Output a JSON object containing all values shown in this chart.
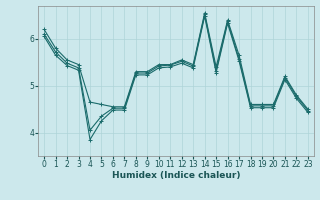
{
  "xlabel": "Humidex (Indice chaleur)",
  "xlim": [
    -0.5,
    23.5
  ],
  "ylim": [
    3.5,
    6.7
  ],
  "yticks": [
    4,
    5,
    6
  ],
  "xticks": [
    0,
    1,
    2,
    3,
    4,
    5,
    6,
    7,
    8,
    9,
    10,
    11,
    12,
    13,
    14,
    15,
    16,
    17,
    18,
    19,
    20,
    21,
    22,
    23
  ],
  "bg_color": "#cce8ec",
  "line_color": "#1a6b6b",
  "grid_color": "#afd4d8",
  "line1_y": [
    6.2,
    5.8,
    5.55,
    5.45,
    4.65,
    4.6,
    4.55,
    4.55,
    5.3,
    5.3,
    5.45,
    5.45,
    5.55,
    5.45,
    6.55,
    5.4,
    6.4,
    5.65,
    4.6,
    4.6,
    4.6,
    5.2,
    4.8,
    4.5
  ],
  "line2_y": [
    6.1,
    5.72,
    5.48,
    5.38,
    4.05,
    4.35,
    4.52,
    4.52,
    5.27,
    5.27,
    5.42,
    5.44,
    5.52,
    5.42,
    6.52,
    5.32,
    6.37,
    5.57,
    4.57,
    4.57,
    4.57,
    5.17,
    4.77,
    4.47
  ],
  "line3_y": [
    6.05,
    5.65,
    5.43,
    5.33,
    3.85,
    4.25,
    4.48,
    4.48,
    5.23,
    5.23,
    5.38,
    5.4,
    5.48,
    5.38,
    6.48,
    5.28,
    6.33,
    5.53,
    4.53,
    4.53,
    4.53,
    5.13,
    4.73,
    4.43
  ],
  "markersize": 3,
  "linewidth": 0.8,
  "tick_fontsize": 5.5,
  "xlabel_fontsize": 6.5
}
